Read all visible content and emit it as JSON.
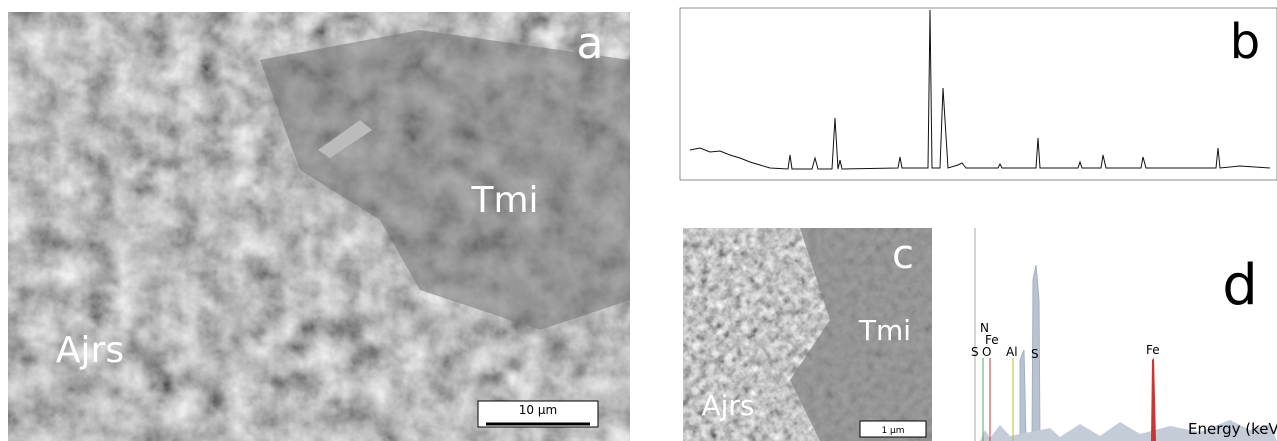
{
  "panel_a": {
    "letter": "a",
    "labels": [
      "Tmi",
      "Ajrs"
    ],
    "scale_bar": "10 µm"
  },
  "panel_b": {
    "letter": "b"
  },
  "panel_c": {
    "letter": "c",
    "labels": [
      "Tmi",
      "Ajrs"
    ],
    "scale_bar": "1 µm"
  },
  "panel_d": {
    "letter": "d",
    "peaks": [
      "N",
      "Fe",
      "S",
      "O",
      "Al",
      "S",
      "Fe"
    ],
    "axis_label": "Energy (keV"
  }
}
